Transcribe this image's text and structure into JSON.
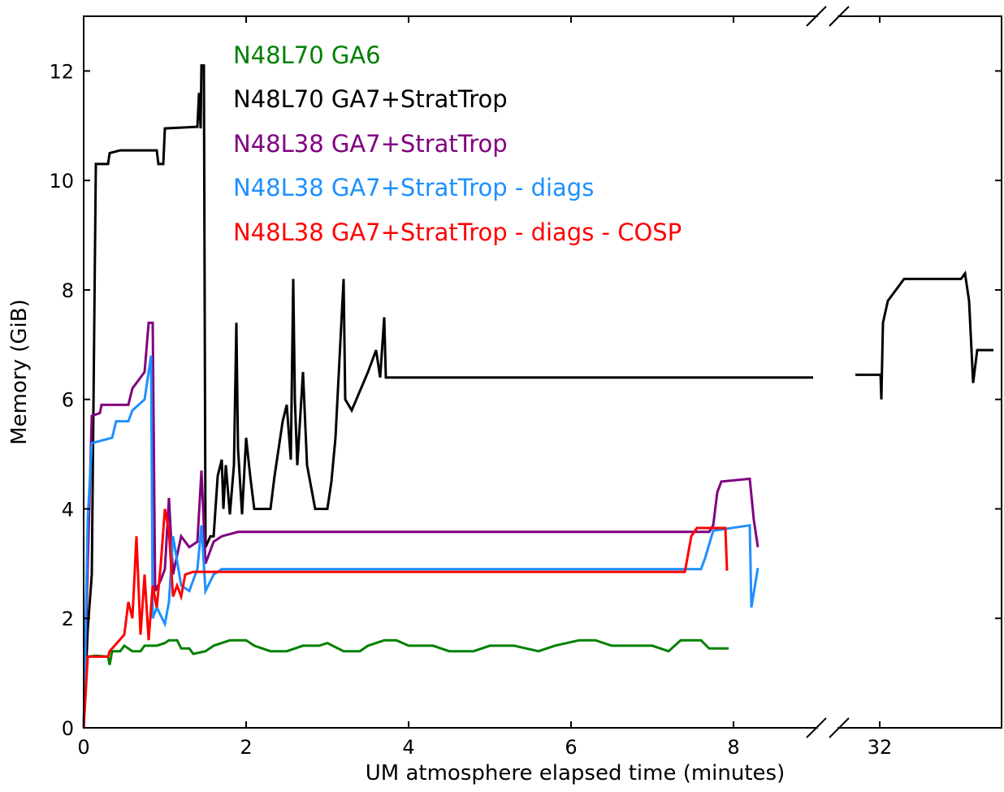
{
  "chart_data": {
    "type": "line",
    "xlabel": "UM atmosphere elapsed time (minutes)",
    "ylabel": "Memory (GiB)",
    "xlim_left": [
      0,
      8.98
    ],
    "xlim_right_start": 31.5,
    "x_ticks": [
      0,
      2,
      4,
      6,
      8,
      32
    ],
    "ylim": [
      0,
      13
    ],
    "y_ticks": [
      0,
      2,
      4,
      6,
      8,
      10,
      12
    ],
    "x_axis_break": true,
    "grid": false,
    "legend_location": "top-center",
    "series": [
      {
        "name": "N48L70 GA6",
        "color": "#008000",
        "points": [
          [
            0,
            0
          ],
          [
            0.02,
            1.0
          ],
          [
            0.05,
            1.3
          ],
          [
            0.15,
            1.32
          ],
          [
            0.3,
            1.3
          ],
          [
            0.32,
            1.15
          ],
          [
            0.35,
            1.4
          ],
          [
            0.45,
            1.4
          ],
          [
            0.5,
            1.5
          ],
          [
            0.6,
            1.4
          ],
          [
            0.7,
            1.4
          ],
          [
            0.75,
            1.5
          ],
          [
            0.9,
            1.5
          ],
          [
            1.0,
            1.55
          ],
          [
            1.05,
            1.6
          ],
          [
            1.15,
            1.6
          ],
          [
            1.2,
            1.45
          ],
          [
            1.3,
            1.45
          ],
          [
            1.35,
            1.35
          ],
          [
            1.5,
            1.4
          ],
          [
            1.6,
            1.5
          ],
          [
            1.8,
            1.6
          ],
          [
            2.0,
            1.6
          ],
          [
            2.1,
            1.5
          ],
          [
            2.3,
            1.4
          ],
          [
            2.5,
            1.4
          ],
          [
            2.7,
            1.5
          ],
          [
            2.9,
            1.5
          ],
          [
            3.0,
            1.55
          ],
          [
            3.2,
            1.4
          ],
          [
            3.4,
            1.4
          ],
          [
            3.5,
            1.5
          ],
          [
            3.7,
            1.6
          ],
          [
            3.85,
            1.6
          ],
          [
            4.0,
            1.5
          ],
          [
            4.3,
            1.5
          ],
          [
            4.5,
            1.4
          ],
          [
            4.8,
            1.4
          ],
          [
            5.0,
            1.5
          ],
          [
            5.3,
            1.5
          ],
          [
            5.6,
            1.4
          ],
          [
            5.8,
            1.5
          ],
          [
            6.1,
            1.6
          ],
          [
            6.3,
            1.6
          ],
          [
            6.5,
            1.5
          ],
          [
            7.0,
            1.5
          ],
          [
            7.2,
            1.4
          ],
          [
            7.35,
            1.6
          ],
          [
            7.6,
            1.6
          ],
          [
            7.7,
            1.45
          ],
          [
            7.94,
            1.45
          ]
        ]
      },
      {
        "name": "N48L70 GA7+StratTrop",
        "color": "#000000",
        "points": [
          [
            0,
            0
          ],
          [
            0.05,
            1.8
          ],
          [
            0.1,
            2.8
          ],
          [
            0.15,
            10.3
          ],
          [
            0.3,
            10.3
          ],
          [
            0.32,
            10.5
          ],
          [
            0.45,
            10.55
          ],
          [
            0.7,
            10.55
          ],
          [
            0.9,
            10.55
          ],
          [
            0.92,
            10.3
          ],
          [
            0.98,
            10.3
          ],
          [
            1.0,
            10.95
          ],
          [
            1.4,
            10.98
          ],
          [
            1.42,
            11.6
          ],
          [
            1.44,
            10.95
          ],
          [
            1.45,
            12.1
          ],
          [
            1.48,
            12.1
          ],
          [
            1.5,
            3.3
          ],
          [
            1.56,
            3.5
          ],
          [
            1.6,
            3.5
          ],
          [
            1.65,
            4.6
          ],
          [
            1.7,
            4.9
          ],
          [
            1.72,
            4.0
          ],
          [
            1.75,
            4.8
          ],
          [
            1.8,
            3.9
          ],
          [
            1.85,
            4.8
          ],
          [
            1.88,
            7.4
          ],
          [
            1.9,
            5.1
          ],
          [
            1.95,
            3.9
          ],
          [
            2.0,
            5.3
          ],
          [
            2.05,
            4.6
          ],
          [
            2.1,
            4.0
          ],
          [
            2.3,
            4.0
          ],
          [
            2.35,
            4.6
          ],
          [
            2.45,
            5.6
          ],
          [
            2.5,
            5.9
          ],
          [
            2.55,
            4.9
          ],
          [
            2.58,
            8.2
          ],
          [
            2.6,
            6.0
          ],
          [
            2.63,
            4.8
          ],
          [
            2.7,
            6.5
          ],
          [
            2.75,
            4.8
          ],
          [
            2.85,
            4.0
          ],
          [
            3.0,
            4.0
          ],
          [
            3.05,
            4.5
          ],
          [
            3.1,
            5.3
          ],
          [
            3.2,
            8.2
          ],
          [
            3.22,
            6.0
          ],
          [
            3.3,
            5.8
          ],
          [
            3.5,
            6.5
          ],
          [
            3.6,
            6.9
          ],
          [
            3.65,
            6.4
          ],
          [
            3.7,
            7.5
          ],
          [
            3.72,
            6.4
          ],
          [
            8.98,
            6.4
          ],
          [
            31.7,
            6.45
          ],
          [
            32.01,
            6.45
          ],
          [
            32.02,
            6.0
          ],
          [
            32.04,
            7.4
          ],
          [
            32.1,
            7.8
          ],
          [
            32.2,
            8.0
          ],
          [
            32.3,
            8.2
          ],
          [
            33.0,
            8.2
          ],
          [
            33.05,
            8.3
          ],
          [
            33.1,
            7.8
          ],
          [
            33.15,
            6.3
          ],
          [
            33.2,
            6.9
          ],
          [
            33.4,
            6.9
          ]
        ]
      },
      {
        "name": "N48L38 GA7+StratTrop",
        "color": "#800080",
        "points": [
          [
            0,
            0
          ],
          [
            0.05,
            3.0
          ],
          [
            0.1,
            5.7
          ],
          [
            0.2,
            5.75
          ],
          [
            0.22,
            5.9
          ],
          [
            0.55,
            5.9
          ],
          [
            0.6,
            6.2
          ],
          [
            0.75,
            6.5
          ],
          [
            0.8,
            7.4
          ],
          [
            0.85,
            7.4
          ],
          [
            0.88,
            2.5
          ],
          [
            0.95,
            2.7
          ],
          [
            1.0,
            2.9
          ],
          [
            1.05,
            4.2
          ],
          [
            1.1,
            2.8
          ],
          [
            1.2,
            3.5
          ],
          [
            1.3,
            3.3
          ],
          [
            1.4,
            3.4
          ],
          [
            1.45,
            4.7
          ],
          [
            1.5,
            3.0
          ],
          [
            1.6,
            3.4
          ],
          [
            1.7,
            3.5
          ],
          [
            1.9,
            3.58
          ],
          [
            7.7,
            3.58
          ],
          [
            7.75,
            3.7
          ],
          [
            7.8,
            4.3
          ],
          [
            7.85,
            4.5
          ],
          [
            8.2,
            4.55
          ],
          [
            8.25,
            3.8
          ],
          [
            8.3,
            3.3
          ]
        ]
      },
      {
        "name": "N48L38 GA7+StratTrop - diags",
        "color": "#1E90FF",
        "points": [
          [
            0,
            0
          ],
          [
            0.05,
            3.8
          ],
          [
            0.1,
            5.2
          ],
          [
            0.35,
            5.3
          ],
          [
            0.4,
            5.6
          ],
          [
            0.55,
            5.6
          ],
          [
            0.6,
            5.8
          ],
          [
            0.75,
            6.0
          ],
          [
            0.83,
            6.8
          ],
          [
            0.85,
            2.0
          ],
          [
            0.9,
            2.2
          ],
          [
            1.0,
            1.9
          ],
          [
            1.05,
            2.3
          ],
          [
            1.1,
            3.5
          ],
          [
            1.2,
            2.6
          ],
          [
            1.3,
            2.5
          ],
          [
            1.4,
            2.9
          ],
          [
            1.45,
            3.7
          ],
          [
            1.5,
            2.5
          ],
          [
            1.6,
            2.8
          ],
          [
            1.7,
            2.9
          ],
          [
            7.6,
            2.9
          ],
          [
            7.65,
            3.1
          ],
          [
            7.75,
            3.6
          ],
          [
            8.2,
            3.7
          ],
          [
            8.22,
            2.2
          ],
          [
            8.3,
            2.92
          ]
        ]
      },
      {
        "name": "N48L38 GA7+StratTrop - diags - COSP",
        "color": "#FF0000",
        "points": [
          [
            0,
            0
          ],
          [
            0.05,
            1.3
          ],
          [
            0.3,
            1.3
          ],
          [
            0.32,
            1.4
          ],
          [
            0.5,
            1.7
          ],
          [
            0.55,
            2.3
          ],
          [
            0.6,
            2.0
          ],
          [
            0.65,
            3.5
          ],
          [
            0.7,
            1.7
          ],
          [
            0.75,
            2.8
          ],
          [
            0.8,
            1.6
          ],
          [
            0.85,
            2.6
          ],
          [
            0.9,
            2.2
          ],
          [
            0.95,
            3.0
          ],
          [
            1.0,
            4.0
          ],
          [
            1.05,
            3.6
          ],
          [
            1.1,
            2.4
          ],
          [
            1.15,
            2.6
          ],
          [
            1.2,
            2.4
          ],
          [
            1.25,
            2.8
          ],
          [
            1.35,
            2.85
          ],
          [
            7.4,
            2.85
          ],
          [
            7.42,
            3.0
          ],
          [
            7.48,
            3.5
          ],
          [
            7.55,
            3.65
          ],
          [
            7.9,
            3.65
          ],
          [
            7.92,
            2.87
          ]
        ]
      }
    ]
  }
}
